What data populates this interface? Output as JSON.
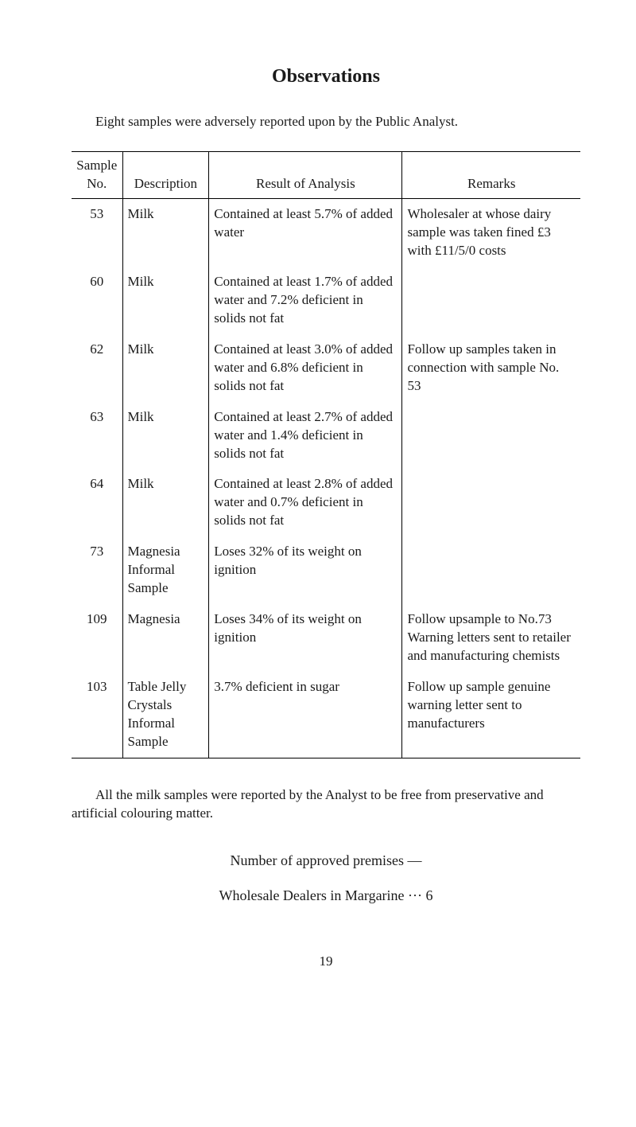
{
  "title": "Observations",
  "intro": "Eight samples were adversely reported upon by the Public Analyst.",
  "table": {
    "headers": {
      "sample_no": "Sample No.",
      "description": "Description",
      "result": "Result of Analysis",
      "remarks": "Remarks"
    },
    "rows": [
      {
        "no": "53",
        "desc": "Milk",
        "result": "Contained at least 5.7% of added water",
        "remarks": "Wholesaler at whose dairy sample was taken fined £3 with £11/5/0 costs"
      },
      {
        "no": "60",
        "desc": "Milk",
        "result": "Contained at least 1.7% of added water and 7.2% deficient in solids not fat",
        "remarks": ""
      },
      {
        "no": "62",
        "desc": "Milk",
        "result": "Contained at least 3.0% of added water and 6.8% deficient in solids not fat",
        "remarks": "Follow up samples taken in connection with sample No. 53"
      },
      {
        "no": "63",
        "desc": "Milk",
        "result": "Contained at least 2.7% of added water and 1.4% deficient in solids not fat",
        "remarks": ""
      },
      {
        "no": "64",
        "desc": "Milk",
        "result": "Contained at least 2.8% of added water and 0.7% deficient in solids not fat",
        "remarks": ""
      },
      {
        "no": "73",
        "desc": "Magnesia Informal Sample",
        "result": "Loses 32% of its weight on ignition",
        "remarks": ""
      },
      {
        "no": "109",
        "desc": "Magnesia",
        "result": "Loses 34% of its weight on ignition",
        "remarks": "Follow upsample to No.73 Warning letters sent to retailer and manufacturing chemists"
      },
      {
        "no": "103",
        "desc": "Table Jelly Crystals Informal Sample",
        "result": "3.7% deficient in sugar",
        "remarks": "Follow up sample genuine warning letter sent to manufacturers"
      }
    ]
  },
  "final_para": "All the milk samples were reported by the Analyst to be free from preservative and artificial colouring matter.",
  "premises_heading": "Number of approved premises —",
  "dealers_line": "Wholesale Dealers in Margarine   ···   6",
  "page_num": "19"
}
